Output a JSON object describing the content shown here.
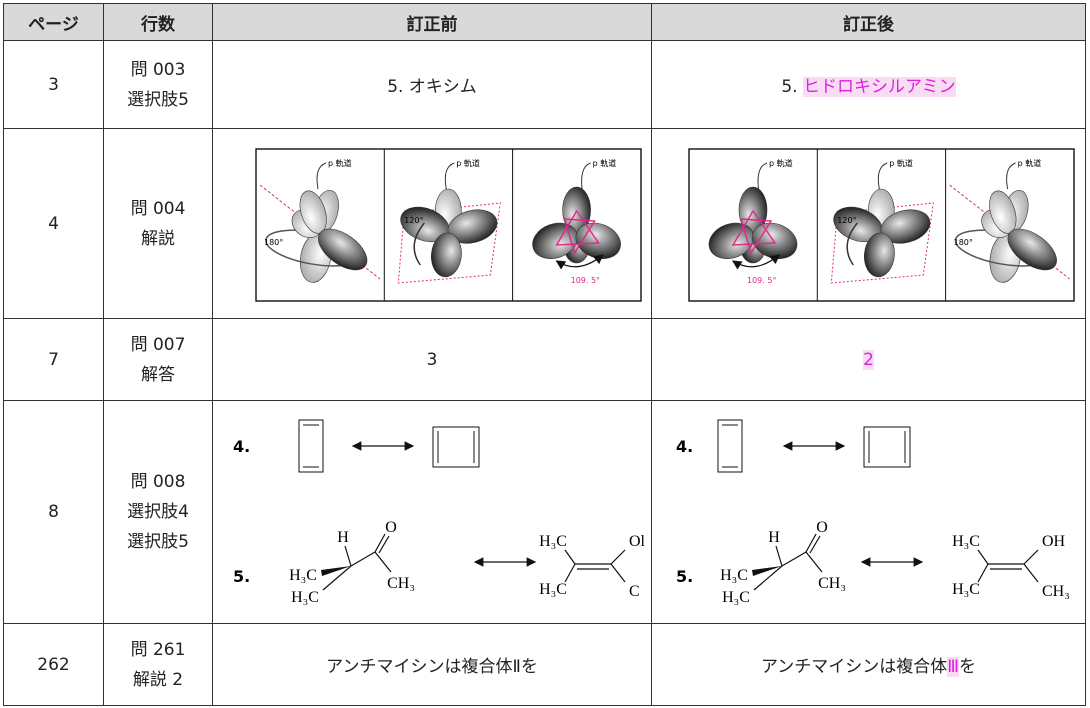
{
  "table": {
    "header": [
      "ページ",
      "行数",
      "訂正前",
      "訂正後"
    ],
    "rows": [
      {
        "page": "3",
        "line": [
          "問 003",
          "選択肢5"
        ],
        "before": "5. オキシム",
        "after": {
          "prefix": "5.",
          "highlight": "ヒドロキシルアミン"
        }
      },
      {
        "page": "4",
        "line": [
          "問 004",
          "解説"
        ],
        "before": {
          "panels": [
            {
              "label": "p 軌道",
              "angle": "180°"
            },
            {
              "label": "p 軌道",
              "angle": "120°"
            },
            {
              "label": "p 軌道",
              "angle": "109. 5°"
            }
          ]
        },
        "after": {
          "panels": [
            {
              "label": "p 軌道",
              "angle": "109. 5°"
            },
            {
              "label": "p 軌道",
              "angle": "120°"
            },
            {
              "label": "p 軌道",
              "angle": "180°"
            }
          ]
        }
      },
      {
        "page": "7",
        "line": [
          "問 007",
          "解答"
        ],
        "before": "3",
        "after": {
          "highlight": "2"
        }
      },
      {
        "page": "8",
        "line": [
          "問 008",
          "選択肢4",
          "選択肢5"
        ],
        "before": {
          "item4": "4.",
          "item5": "5.",
          "left": {
            "h": "H",
            "o": "O",
            "me1": "H₃C",
            "me2": "H₃C",
            "me3": "CH₃"
          },
          "right": {
            "me1": "H₃C",
            "r1": "Ol",
            "me2": "H₃C",
            "r2": "C"
          }
        },
        "after": {
          "item4": "4.",
          "item5": "5.",
          "left": {
            "h": "H",
            "o": "O",
            "me1": "H₃C",
            "me2": "H₃C",
            "me3": "CH₃"
          },
          "right": {
            "me1": "H₃C",
            "r1": "OH",
            "me2": "H₃C",
            "r2": "CH₃"
          }
        }
      },
      {
        "page": "262",
        "line": [
          "問 261",
          "解説 2"
        ],
        "before": "アンチマイシンは複合体Ⅱを",
        "after": {
          "text": "アンチマイシンは複合体",
          "highlight": "Ⅲ",
          "suffix": "を"
        }
      }
    ]
  }
}
